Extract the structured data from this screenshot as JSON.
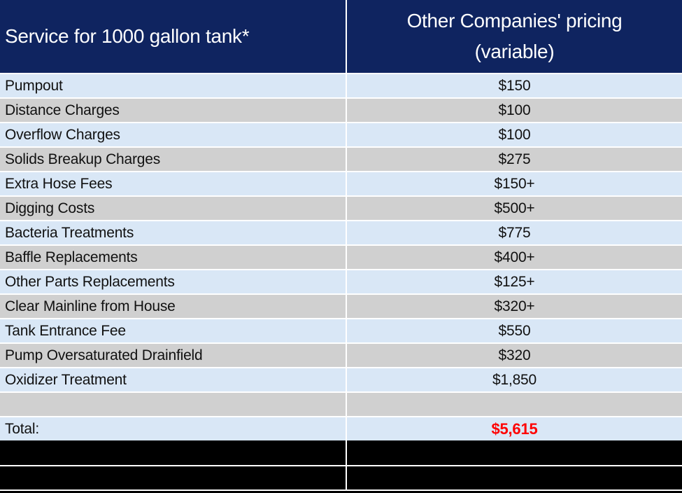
{
  "table": {
    "header": {
      "service_column": "Service for 1000 gallon tank*",
      "pricing_column_line1": "Other Companies' pricing",
      "pricing_column_line2": "(variable)"
    },
    "rows": [
      {
        "label": "Pumpout",
        "value": "$150"
      },
      {
        "label": "Distance Charges",
        "value": "$100"
      },
      {
        "label": "Overflow Charges",
        "value": "$100"
      },
      {
        "label": "Solids Breakup Charges",
        "value": "$275"
      },
      {
        "label": "Extra Hose Fees",
        "value": "$150+"
      },
      {
        "label": "Digging Costs",
        "value": "$500+"
      },
      {
        "label": "Bacteria Treatments",
        "value": "$775"
      },
      {
        "label": "Baffle Replacements",
        "value": "$400+"
      },
      {
        "label": "Other Parts Replacements",
        "value": "$125+"
      },
      {
        "label": "Clear Mainline from House",
        "value": "$320+"
      },
      {
        "label": "Tank Entrance Fee",
        "value": "$550"
      },
      {
        "label": "Pump Oversaturated Drainfield",
        "value": "$320"
      },
      {
        "label": "Oxidizer Treatment",
        "value": "$1,850"
      }
    ],
    "total": {
      "label": "Total:",
      "value": "$5,615"
    }
  },
  "colors": {
    "header_bg": "#0F2460",
    "row_light_bg": "#D9E7F6",
    "row_gray_bg": "#D0D0D0",
    "total_value_text": "#FF0000",
    "redacted_bg": "#000000",
    "gridline": "#FFFFFF"
  }
}
